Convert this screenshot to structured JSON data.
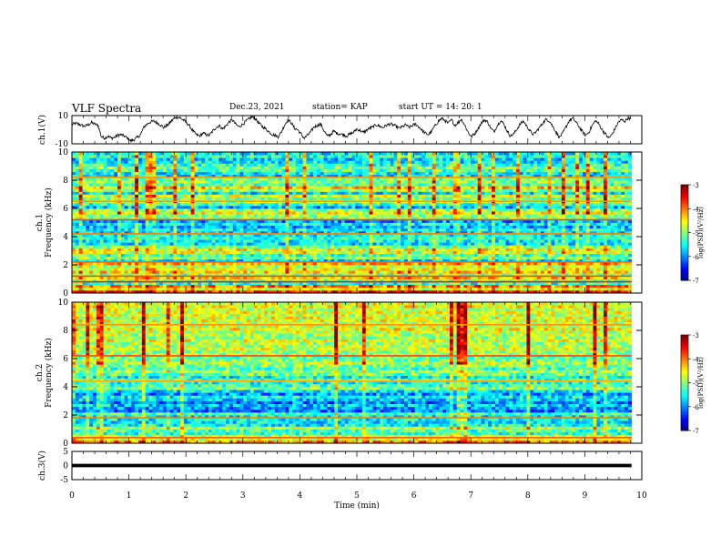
{
  "header": {
    "title": "VLF Spectra",
    "date": "Dec.23, 2021",
    "station": "station= KAP",
    "start": "start  UT =   14: 20: 1"
  },
  "chart_data": [
    {
      "id": "ch1-waveform",
      "type": "line",
      "ylabel": "ch.1(V)",
      "ylim": [
        -10,
        10
      ],
      "yticks": [
        "10",
        "-10"
      ],
      "xlim": [
        0,
        10
      ],
      "x_end": 9.82,
      "y": [
        3.5,
        4.5,
        4,
        3,
        2.5,
        3.5,
        5,
        4,
        3,
        -5,
        -6,
        -4.5,
        -6,
        -5.5,
        -4,
        -3.5,
        -4.5,
        -6,
        -8,
        -7,
        -5.5,
        -3.5,
        2,
        4,
        5.5,
        6,
        5,
        3.5,
        1.5,
        3,
        5,
        7.5,
        9,
        8.5,
        7,
        5,
        2.5,
        -1,
        -3.5,
        -4.5,
        -2.5,
        -3.5,
        -4,
        -1,
        1.5,
        3,
        0.5,
        2.5,
        5.5,
        7,
        4,
        2,
        3.5,
        5.5,
        7.5,
        9,
        8,
        5,
        2.5,
        1,
        -1,
        -3,
        -4,
        -5,
        -1.5,
        3.5,
        7,
        5,
        1,
        0,
        -3,
        -6,
        -4,
        -1.5,
        2,
        3,
        4,
        -0.5,
        -4.5,
        -3.5,
        -1,
        -2.5,
        -3,
        -3.5,
        -4.5,
        -3,
        -2,
        0.5,
        -0.5,
        -2,
        -0.5,
        1,
        2,
        3.5,
        2.5,
        1.5,
        3,
        4,
        3.5,
        2.5,
        1,
        2,
        3.5,
        1.5,
        3,
        4,
        2,
        -0.5,
        -2.5,
        -3.5,
        -1,
        3,
        6,
        8,
        6.5,
        4.5,
        7,
        3,
        5,
        7.5,
        3.5,
        -1.5,
        -5,
        -3,
        0.5,
        4.5,
        7,
        5.5,
        1,
        -1.5,
        3,
        6.5,
        4,
        -1,
        -4.5,
        -3,
        0.5,
        4,
        6,
        2.5,
        -1,
        -3.5,
        -1,
        2,
        5,
        7.5,
        6,
        2,
        -2,
        -5.5,
        -2.5,
        2,
        6.5,
        8,
        5.5,
        2,
        -1.5,
        -4,
        -1.5,
        3,
        6.5,
        4,
        0,
        -3,
        -6,
        -3.5,
        1,
        5.5,
        7,
        6,
        8.5,
        7
      ]
    },
    {
      "id": "ch1-spectrogram",
      "type": "heatmap",
      "ylabel": "Frequency (kHz)",
      "channel_label": "ch.1",
      "ylim": [
        0,
        10
      ],
      "yticks": [
        "0",
        "2",
        "4",
        "6",
        "8",
        "10"
      ],
      "xlim": [
        0,
        10
      ],
      "x_end": 9.82,
      "freq_res": 0.2,
      "profile": [
        -3.6,
        -4.6,
        -4.0,
        -5.4,
        -5.0,
        -4.3,
        -5.1,
        -4.4,
        -4.6,
        -4.8,
        -4.2,
        -5.7,
        -5.0,
        -5.3,
        -4.7,
        -4.5,
        -5.0,
        -5.6,
        -5.5,
        -5.3,
        -5.5,
        -5.7,
        -5.5,
        -5.8,
        -5.5,
        -5.9,
        -5.0,
        -4.9,
        -4.6,
        -4.9,
        -5.8,
        -5.3,
        -4.8,
        -5.0,
        -4.7,
        -5.6,
        -4.9,
        -4.3,
        -5.2,
        -5.0,
        -5.1,
        -5.7,
        -5.6,
        -5.2,
        -5.0,
        -5.3,
        -5.6,
        -5.7,
        -5.3,
        -5.5,
        -5.2
      ],
      "lines": [
        {
          "f": 0.8,
          "level": -3.6
        },
        {
          "f": 1.2,
          "level": -3.8
        },
        {
          "f": 2.2,
          "level": -3.9
        },
        {
          "f": 4.2,
          "level": -4.0
        },
        {
          "f": 5.2,
          "level": -3.8
        },
        {
          "f": 6.5,
          "level": -4.1
        },
        {
          "f": 8.2,
          "level": -4.1
        }
      ],
      "colorbar": {
        "label": "log(PSD)(V²/Hz)",
        "ticks": [
          "-3",
          "-4",
          "-5",
          "-6",
          "-7"
        ],
        "range": [
          -7,
          -3
        ]
      }
    },
    {
      "id": "ch2-spectrogram",
      "type": "heatmap",
      "ylabel": "Frequency (kHz)",
      "channel_label": "ch.2",
      "ylim": [
        0,
        10
      ],
      "yticks": [
        "0",
        "2",
        "4",
        "6",
        "8",
        "10"
      ],
      "xlim": [
        0,
        10
      ],
      "x_end": 9.82,
      "freq_res": 0.2,
      "profile": [
        -4.0,
        -4.6,
        -4.9,
        -5.3,
        -5.2,
        -4.7,
        -5.5,
        -5.6,
        -5.5,
        -5.6,
        -5.2,
        -6.0,
        -5.9,
        -5.7,
        -6.0,
        -5.7,
        -5.5,
        -5.9,
        -5.6,
        -5.0,
        -5.2,
        -5.4,
        -5.2,
        -5.5,
        -5.1,
        -4.9,
        -5.2,
        -5.0,
        -4.8,
        -5.0,
        -5.1,
        -4.9,
        -4.9,
        -4.7,
        -4.8,
        -4.8,
        -4.6,
        -4.9,
        -4.8,
        -4.7,
        -4.5,
        -4.7,
        -4.8,
        -4.6,
        -4.6,
        -4.7,
        -4.6,
        -4.7,
        -4.5,
        -4.6,
        -4.6
      ],
      "lines": [
        {
          "f": 0.4,
          "level": -3.9
        },
        {
          "f": 1.8,
          "level": -4.0
        },
        {
          "f": 4.4,
          "level": -4.2
        },
        {
          "f": 6.2,
          "level": -3.8
        },
        {
          "f": 8.4,
          "level": -4.1
        }
      ],
      "colorbar": {
        "label": "log(PSD)(V²/Hz)",
        "ticks": [
          "-3",
          "-4",
          "-5",
          "-6",
          "-7"
        ],
        "range": [
          -7,
          -3
        ]
      }
    },
    {
      "id": "ch3-waveform",
      "type": "area",
      "ylabel": "ch.3(V)",
      "ylim": [
        -5,
        5
      ],
      "yticks": [
        "5",
        "0",
        "-5"
      ],
      "band": [
        -0.6,
        0.6
      ],
      "xlim": [
        0,
        10
      ],
      "x_end": 9.82,
      "xticks": [
        "0",
        "1",
        "2",
        "3",
        "4",
        "5",
        "6",
        "7",
        "8",
        "9",
        "10"
      ],
      "xlabel": "Time (min)"
    }
  ]
}
